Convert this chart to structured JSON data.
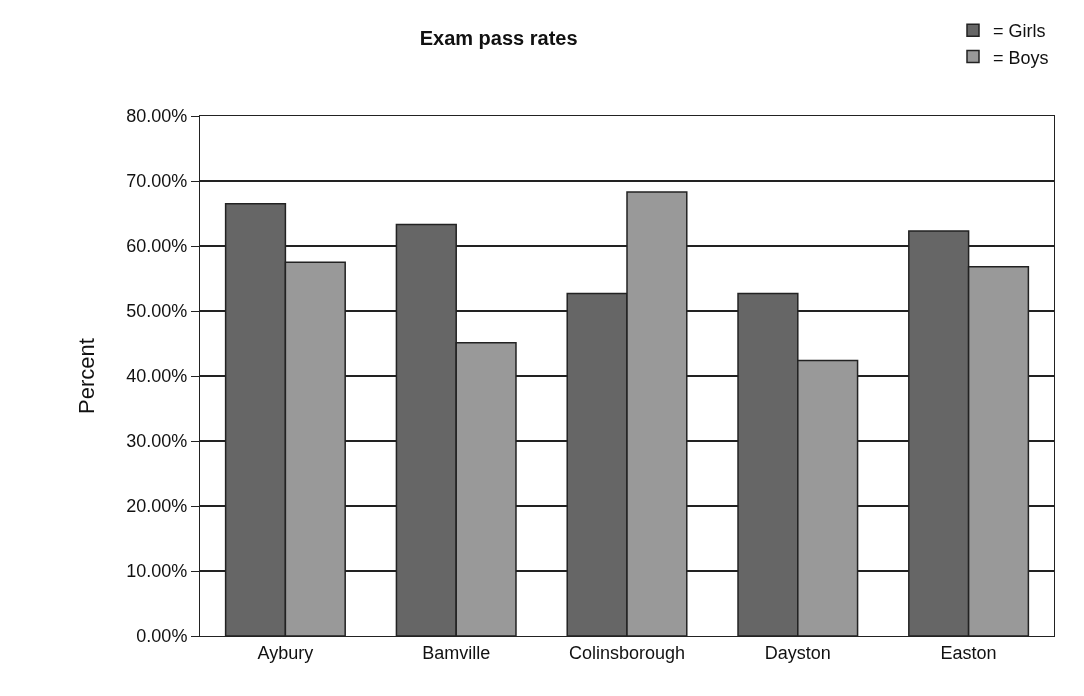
{
  "chart_data": {
    "type": "bar",
    "title": "Exam pass rates",
    "ylabel": "Percent",
    "categories": [
      "Aybury",
      "Bamville",
      "Colinsborough",
      "Dayston",
      "Easton"
    ],
    "series": [
      {
        "name": "= Girls",
        "color": "#666666",
        "values": [
          66.5,
          63.3,
          52.7,
          52.7,
          62.3
        ]
      },
      {
        "name": "= Boys",
        "color": "#999999",
        "values": [
          57.5,
          45.1,
          68.3,
          42.4,
          56.8
        ]
      }
    ],
    "ylim": [
      0,
      80
    ],
    "yticks": [
      {
        "value": 0,
        "label": "0.00%"
      },
      {
        "value": 10,
        "label": "10.00%"
      },
      {
        "value": 20,
        "label": "20.00%"
      },
      {
        "value": 30,
        "label": "30.00%"
      },
      {
        "value": 40,
        "label": "40.00%"
      },
      {
        "value": 50,
        "label": "50.00%"
      },
      {
        "value": 60,
        "label": "60.00%"
      },
      {
        "value": 70,
        "label": "70.00%"
      },
      {
        "value": 80,
        "label": "80.00%"
      }
    ],
    "grid": "y",
    "legend": "top right"
  }
}
